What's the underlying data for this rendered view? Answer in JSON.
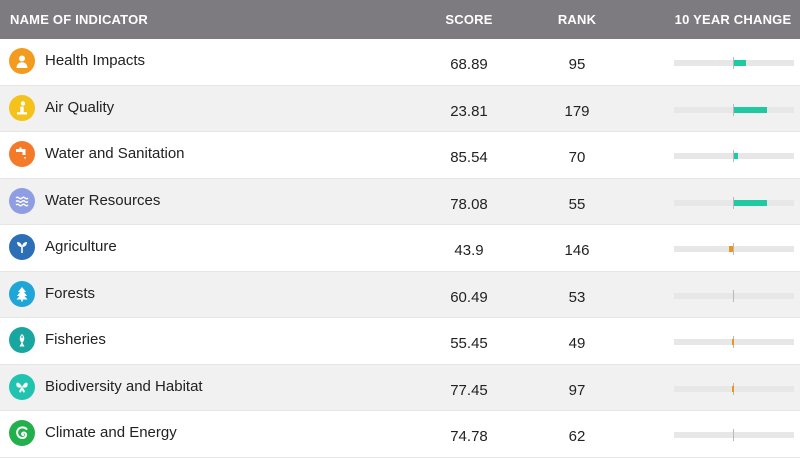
{
  "header": {
    "name": "NAME OF INDICATOR",
    "score": "SCORE",
    "rank": "RANK",
    "change": "10 YEAR CHANGE"
  },
  "colors": {
    "header_bg": "#7d7b80",
    "positive": "#1fc9a1",
    "negative": "#f1921f"
  },
  "rows": [
    {
      "label": "Health Impacts",
      "score": "68.89",
      "rank": "95",
      "icon": "person-icon",
      "icon_color": "#f39b1e",
      "change": 0.2
    },
    {
      "label": "Air Quality",
      "score": "23.81",
      "rank": "179",
      "icon": "smokestack-icon",
      "icon_color": "#f4c21b",
      "change": 0.55
    },
    {
      "label": "Water and Sanitation",
      "score": "85.54",
      "rank": "70",
      "icon": "faucet-icon",
      "icon_color": "#f47a29",
      "change": 0.08
    },
    {
      "label": "Water Resources",
      "score": "78.08",
      "rank": "55",
      "icon": "waves-icon",
      "icon_color": "#8f9de2",
      "change": 0.55
    },
    {
      "label": "Agriculture",
      "score": "43.9",
      "rank": "146",
      "icon": "sprout-icon",
      "icon_color": "#2c6fb6",
      "change": -0.08
    },
    {
      "label": "Forests",
      "score": "60.49",
      "rank": "53",
      "icon": "tree-icon",
      "icon_color": "#1ea7d6",
      "change": 0
    },
    {
      "label": "Fisheries",
      "score": "55.45",
      "rank": "49",
      "icon": "fish-icon",
      "icon_color": "#1aa6a0",
      "change": -0.02
    },
    {
      "label": "Biodiversity and Habitat",
      "score": "77.45",
      "rank": "97",
      "icon": "butterfly-icon",
      "icon_color": "#20c3b0",
      "change": -0.02
    },
    {
      "label": "Climate and Energy",
      "score": "74.78",
      "rank": "62",
      "icon": "climate-swirl-icon",
      "icon_color": "#21b04b",
      "change": 0
    }
  ]
}
